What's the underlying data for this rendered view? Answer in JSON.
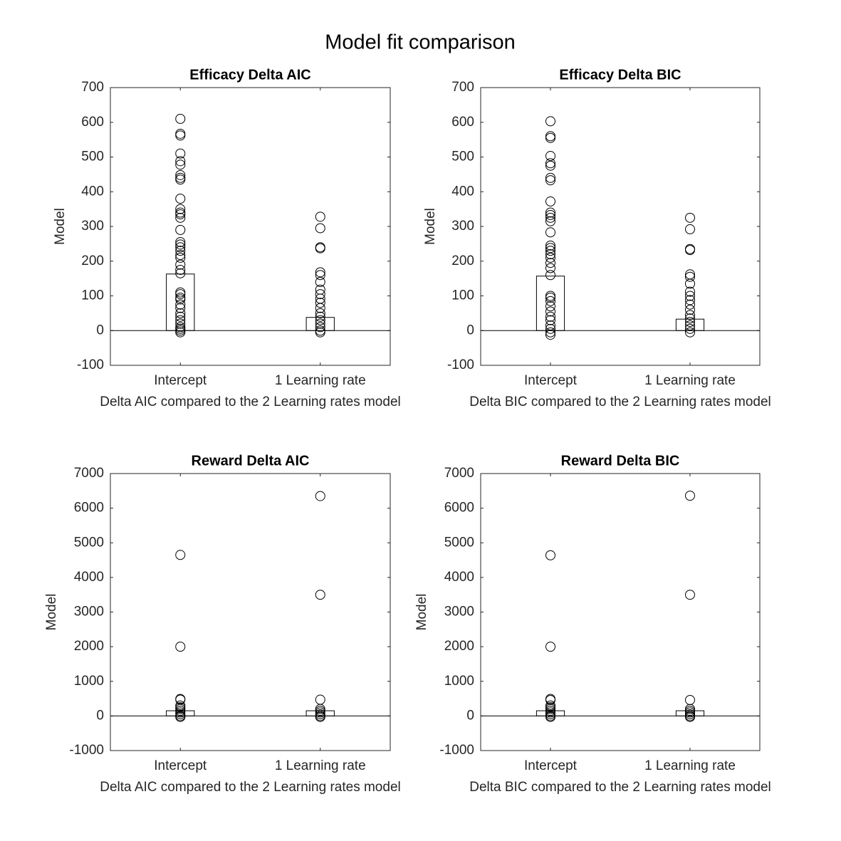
{
  "title": "Model fit comparison",
  "chart_data": [
    {
      "type": "bar",
      "title": "Efficacy Delta AIC",
      "xlabel": "Delta AIC compared to the 2 Learning rates model",
      "ylabel": "Model",
      "categories": [
        "Intercept",
        "1 Learning rate"
      ],
      "values": [
        163,
        38
      ],
      "points": [
        [
          610,
          567,
          562,
          510,
          488,
          478,
          448,
          440,
          435,
          380,
          350,
          340,
          335,
          325,
          290,
          255,
          248,
          240,
          230,
          218,
          210,
          190,
          175,
          165,
          110,
          105,
          95,
          90,
          75,
          65,
          50,
          40,
          30,
          20,
          10,
          5,
          0,
          -5
        ],
        [
          328,
          295,
          240,
          237,
          168,
          160,
          140,
          118,
          105,
          92,
          80,
          65,
          50,
          40,
          30,
          20,
          10,
          0,
          -5
        ]
      ],
      "ylim": [
        -100,
        700
      ],
      "yticks": [
        -100,
        0,
        100,
        200,
        300,
        400,
        500,
        600,
        700
      ]
    },
    {
      "type": "bar",
      "title": "Efficacy Delta BIC",
      "xlabel": "Delta BIC compared to the 2 Learning rates model",
      "ylabel": "Model",
      "categories": [
        "Intercept",
        "1 Learning rate"
      ],
      "values": [
        157,
        33
      ],
      "points": [
        [
          603,
          560,
          555,
          503,
          482,
          475,
          440,
          433,
          372,
          340,
          333,
          325,
          315,
          283,
          245,
          238,
          230,
          220,
          210,
          195,
          180,
          160,
          100,
          95,
          85,
          70,
          55,
          40,
          30,
          15,
          5,
          -5,
          -12
        ],
        [
          325,
          292,
          235,
          232,
          162,
          155,
          135,
          112,
          100,
          88,
          75,
          60,
          45,
          35,
          25,
          15,
          5,
          -5
        ]
      ],
      "ylim": [
        -100,
        700
      ],
      "yticks": [
        -100,
        0,
        100,
        200,
        300,
        400,
        500,
        600,
        700
      ]
    },
    {
      "type": "bar",
      "title": "Reward Delta AIC",
      "xlabel": "Delta AIC compared to the 2 Learning rates model",
      "ylabel": "Model",
      "categories": [
        "Intercept",
        "1 Learning rate"
      ],
      "values": [
        150,
        150
      ],
      "points": [
        [
          4650,
          2000,
          490,
          470,
          300,
          250,
          200,
          150,
          100,
          50,
          0,
          -30
        ],
        [
          6350,
          3500,
          470,
          200,
          150,
          100,
          50,
          0,
          -30
        ]
      ],
      "ylim": [
        -1000,
        7000
      ],
      "yticks": [
        -1000,
        0,
        1000,
        2000,
        3000,
        4000,
        5000,
        6000,
        7000
      ]
    },
    {
      "type": "bar",
      "title": "Reward Delta BIC",
      "xlabel": "Delta BIC compared to the 2 Learning rates model",
      "ylabel": "Model",
      "categories": [
        "Intercept",
        "1 Learning rate"
      ],
      "values": [
        150,
        150
      ],
      "points": [
        [
          4640,
          2000,
          490,
          460,
          300,
          250,
          200,
          150,
          100,
          50,
          0,
          -30
        ],
        [
          6360,
          3500,
          460,
          200,
          150,
          100,
          50,
          0,
          -30
        ]
      ],
      "ylim": [
        -1000,
        7000
      ],
      "yticks": [
        -1000,
        0,
        1000,
        2000,
        3000,
        4000,
        5000,
        6000,
        7000
      ]
    }
  ]
}
